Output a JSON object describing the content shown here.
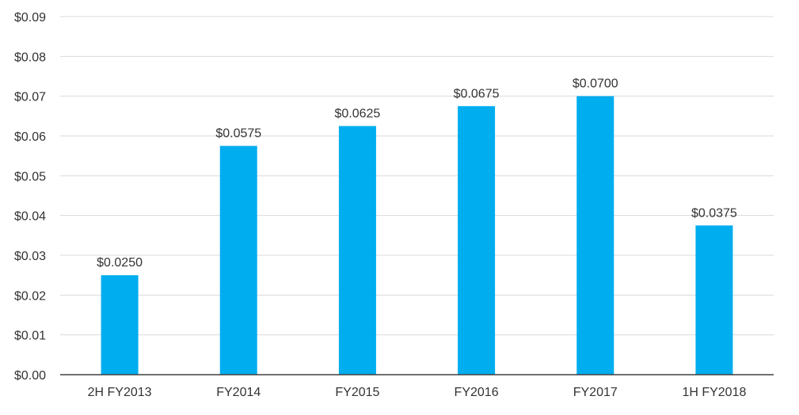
{
  "chart_data": {
    "type": "bar",
    "title": "",
    "xlabel": "",
    "ylabel": "",
    "categories": [
      "2H FY2013",
      "FY2014",
      "FY2015",
      "FY2016",
      "FY2017",
      "1H FY2018"
    ],
    "values": [
      0.025,
      0.0575,
      0.0625,
      0.0675,
      0.07,
      0.0375
    ],
    "data_labels": [
      "$0.0250",
      "$0.0575",
      "$0.0625",
      "$0.0675",
      "$0.0700",
      "$0.0375"
    ],
    "ylim": [
      0,
      0.09
    ],
    "y_ticks": [
      "$0.00",
      "$0.01",
      "$0.02",
      "$0.03",
      "$0.04",
      "$0.05",
      "$0.06",
      "$0.07",
      "$0.08",
      "$0.09"
    ],
    "grid": true,
    "legend": "none",
    "colors": {
      "bar": "#00ADEF",
      "grid": "#D9D9D9",
      "axis": "#404040",
      "text": "#333333"
    }
  }
}
